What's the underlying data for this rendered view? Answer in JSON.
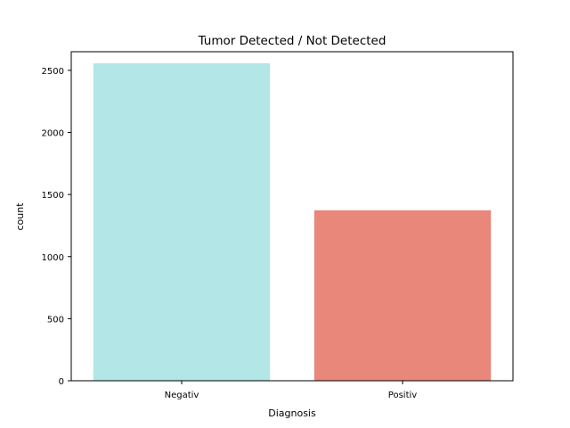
{
  "chart_data": {
    "type": "bar",
    "title": "Tumor Detected / Not Detected",
    "xlabel": "Diagnosis",
    "ylabel": "count",
    "categories": [
      "Negativ",
      "Positiv"
    ],
    "values": [
      2557,
      1373
    ],
    "colors": [
      "#b3e6e6",
      "#e8877a"
    ],
    "ylim": [
      0,
      2650
    ],
    "yticks": [
      0,
      500,
      1000,
      1500,
      2000,
      2500
    ],
    "grid": false,
    "legend": "none"
  }
}
